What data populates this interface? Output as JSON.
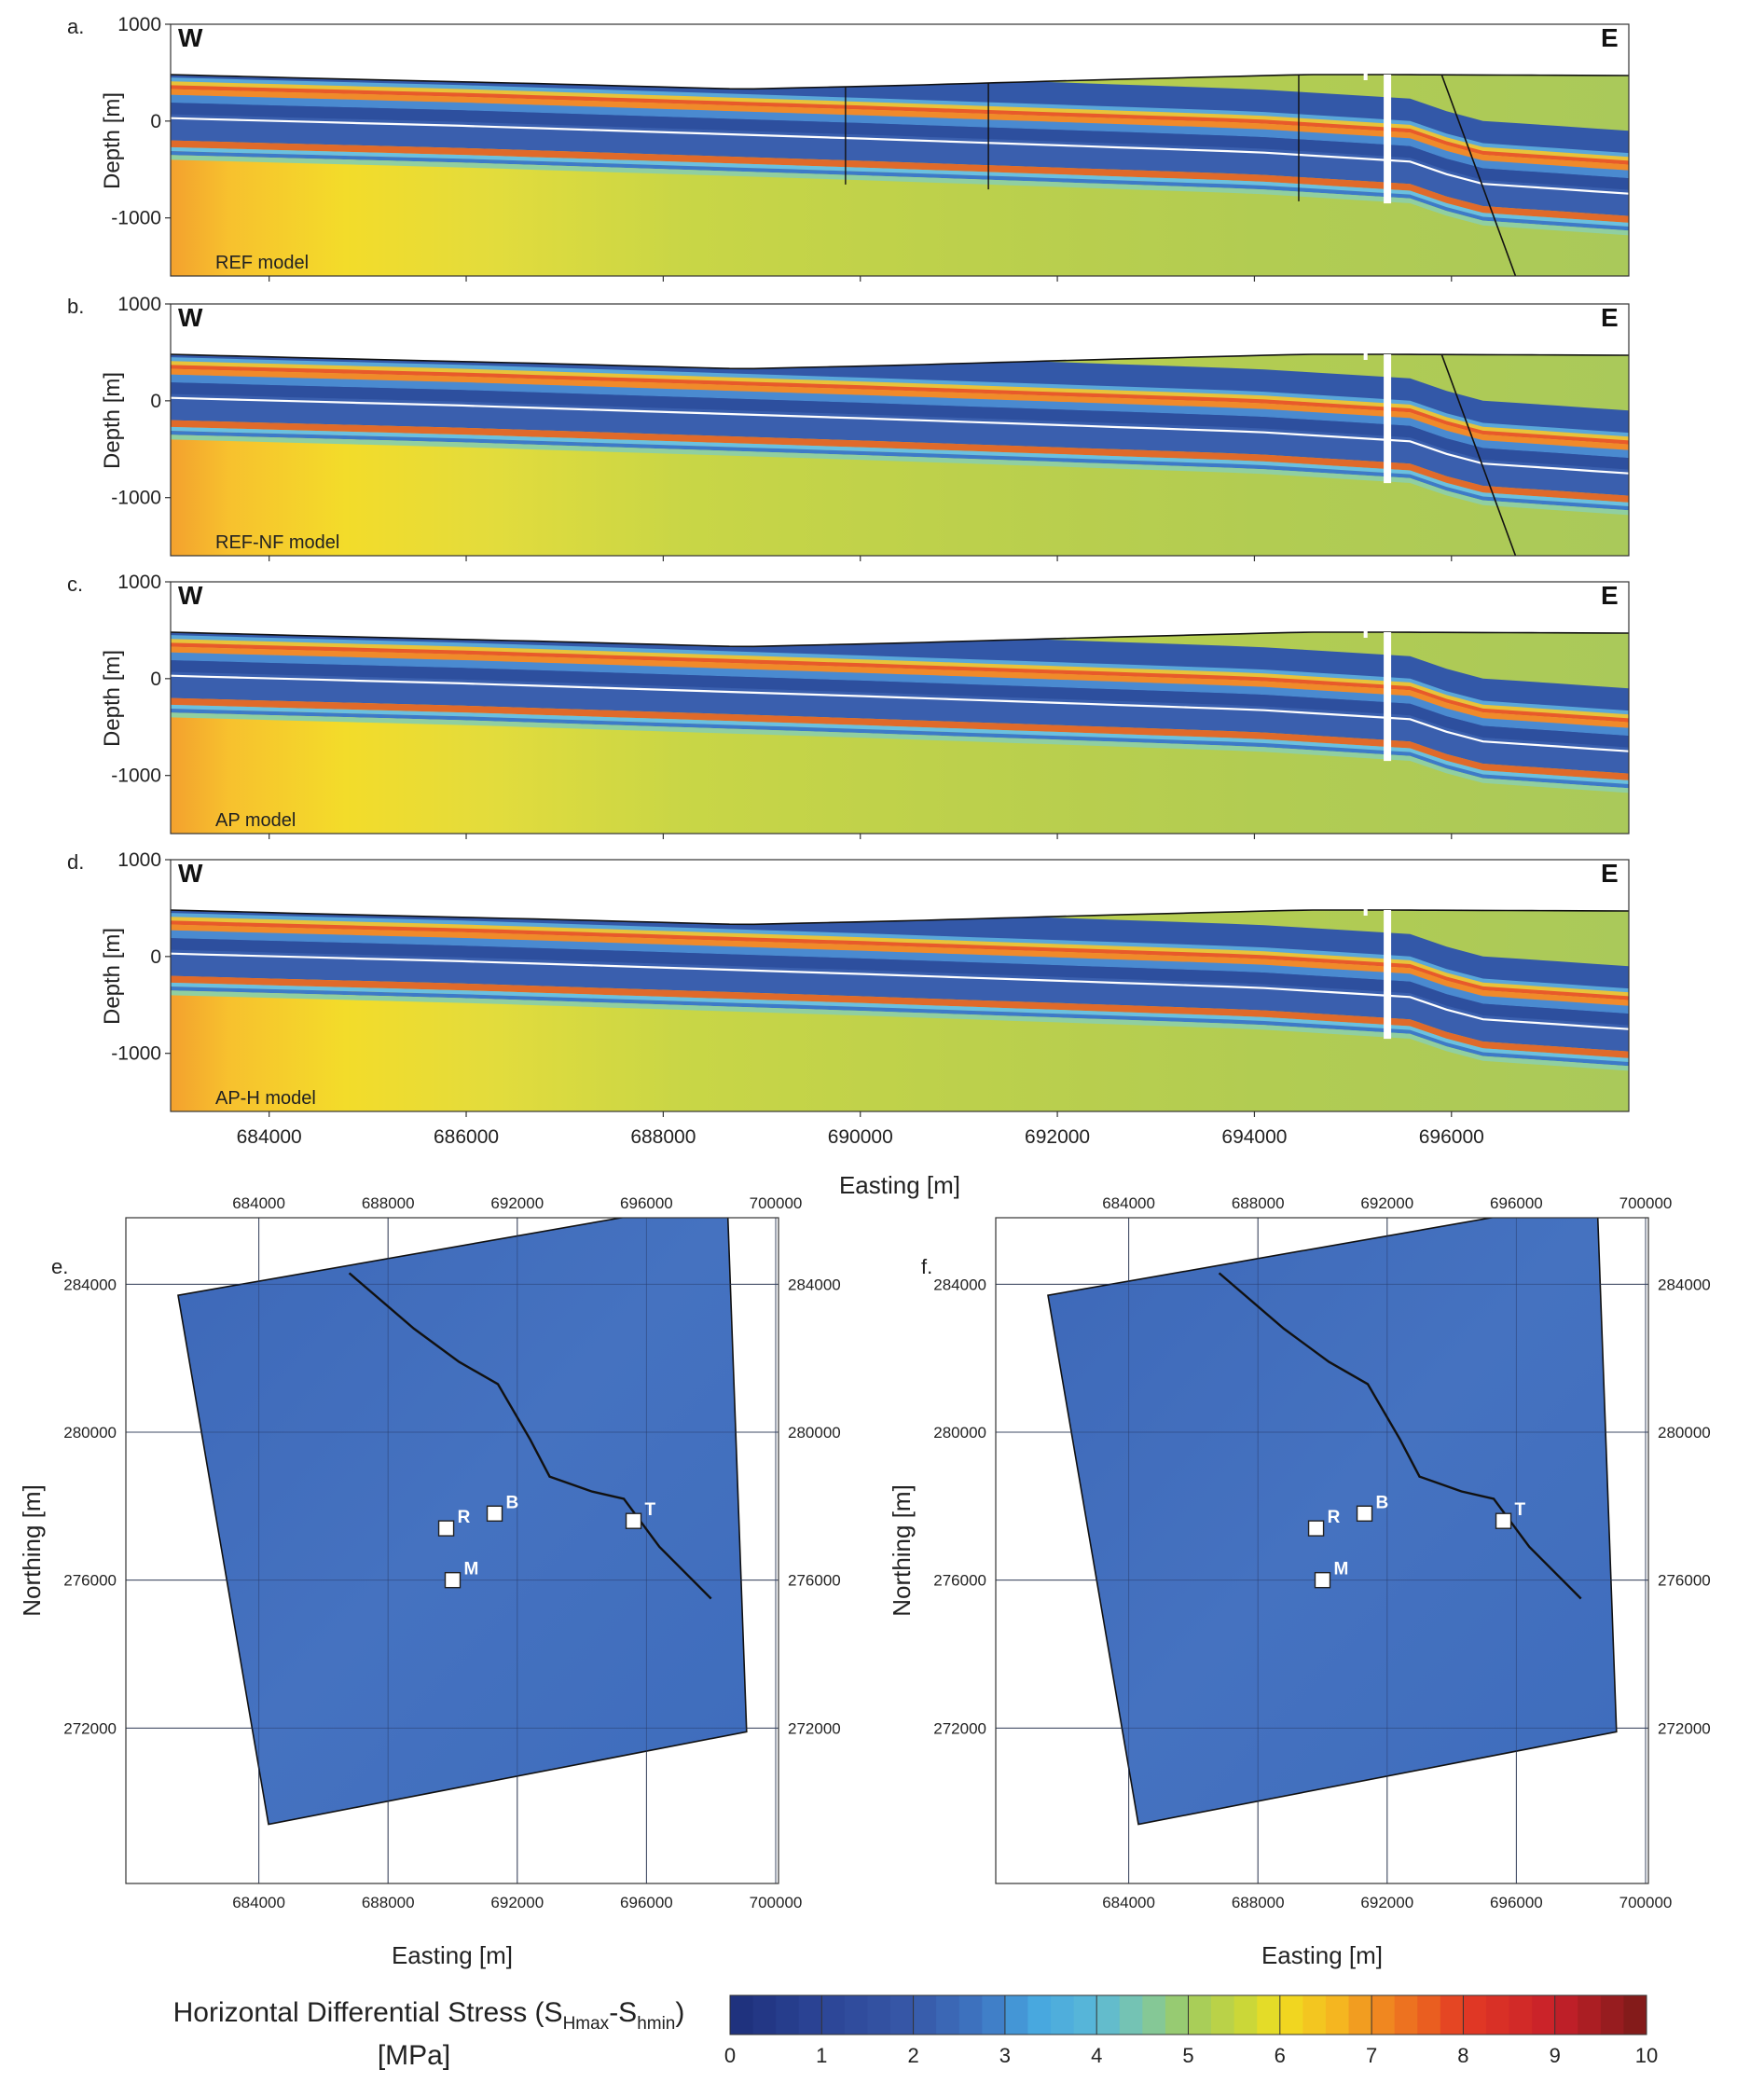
{
  "figure": {
    "cross_sections": {
      "x_axis_label": "Easting [m]",
      "y_axis_label": "Depth [m]",
      "x_ticks": [
        684000,
        686000,
        688000,
        690000,
        692000,
        694000,
        696000
      ],
      "y_ticks": [
        1000,
        0,
        -1000
      ],
      "xlim": [
        683000,
        697800
      ],
      "ylim": [
        -1600,
        1000
      ],
      "west_label": "W",
      "east_label": "E",
      "well_label": "T",
      "panels": [
        {
          "letter": "a.",
          "model_label": "REF model"
        },
        {
          "letter": "b.",
          "model_label": "REF-NF model"
        },
        {
          "letter": "c.",
          "model_label": "AP model"
        },
        {
          "letter": "d.",
          "model_label": "AP-H model"
        }
      ]
    },
    "maps": {
      "x_axis_label": "Easting [m]",
      "y_axis_label": "Northing [m]",
      "x_ticks": [
        684000,
        688000,
        692000,
        696000,
        700000
      ],
      "y_ticks": [
        284000,
        280000,
        276000,
        272000
      ],
      "panels": [
        {
          "letter": "e."
        },
        {
          "letter": "f."
        }
      ],
      "wells": [
        {
          "name": "R",
          "easting": 689800,
          "northing": 277400
        },
        {
          "name": "B",
          "easting": 691300,
          "northing": 277800
        },
        {
          "name": "M",
          "easting": 690000,
          "northing": 276000
        },
        {
          "name": "T",
          "easting": 695600,
          "northing": 277600
        }
      ]
    },
    "colorbar": {
      "title_line1_prefix": "Horizontal Differential Stress (S",
      "title_sub1": "Hmax",
      "title_mid": "-S",
      "title_sub2": "hmin",
      "title_suffix": ")",
      "title_line2": "[MPa]",
      "min": 0,
      "max": 10,
      "ticks": [
        0,
        1,
        2,
        3,
        4,
        5,
        6,
        7,
        8,
        9,
        10
      ]
    }
  },
  "chart_data": [
    {
      "type": "heatmap",
      "title": "REF model",
      "xlabel": "Easting [m]",
      "ylabel": "Depth [m]",
      "xlim": [
        683000,
        697800
      ],
      "ylim": [
        -1600,
        1000
      ],
      "value_unit": "MPa",
      "features": [
        "W",
        "E",
        "T well",
        "fault"
      ],
      "surface_elevation_m": {
        "x": [
          683000,
          690000,
          693000,
          697800
        ],
        "y": [
          480,
          370,
          480,
          470
        ]
      },
      "layers_at_west_edge_m": {
        "high_stress_band": 330,
        "white_horizon": 30,
        "lower_stress_band": -300
      },
      "layers_at_east_edge_m": {
        "high_stress_band": -420,
        "white_horizon": -750,
        "lower_stress_band": -930
      }
    },
    {
      "type": "heatmap",
      "title": "REF-NF model",
      "xlabel": "Easting [m]",
      "ylabel": "Depth [m]",
      "xlim": [
        683000,
        697800
      ],
      "ylim": [
        -1600,
        1000
      ],
      "value_unit": "MPa",
      "features": [
        "W",
        "E",
        "T well",
        "fault"
      ]
    },
    {
      "type": "heatmap",
      "title": "AP model",
      "xlabel": "Easting [m]",
      "ylabel": "Depth [m]",
      "xlim": [
        683000,
        697800
      ],
      "ylim": [
        -1600,
        1000
      ],
      "value_unit": "MPa",
      "features": [
        "W",
        "E",
        "T well"
      ]
    },
    {
      "type": "heatmap",
      "title": "AP-H model",
      "xlabel": "Easting [m]",
      "ylabel": "Depth [m]",
      "xlim": [
        683000,
        697800
      ],
      "ylim": [
        -1600,
        1000
      ],
      "value_unit": "MPa",
      "features": [
        "W",
        "E",
        "T well"
      ]
    },
    {
      "type": "heatmap",
      "title": "",
      "xlabel": "Easting [m]",
      "ylabel": "Northing [m]",
      "xlim": [
        680000,
        700000
      ],
      "ylim": [
        268000,
        286000
      ],
      "value_unit": "MPa",
      "dominant_value_range": [
        1,
        2
      ],
      "wells": [
        "R",
        "B",
        "M",
        "T"
      ]
    },
    {
      "type": "heatmap",
      "title": "",
      "xlabel": "Easting [m]",
      "ylabel": "Northing [m]",
      "xlim": [
        680000,
        700000
      ],
      "ylim": [
        268000,
        286000
      ],
      "value_unit": "MPa",
      "dominant_value_range": [
        1,
        2
      ],
      "wells": [
        "R",
        "B",
        "M",
        "T"
      ]
    }
  ]
}
